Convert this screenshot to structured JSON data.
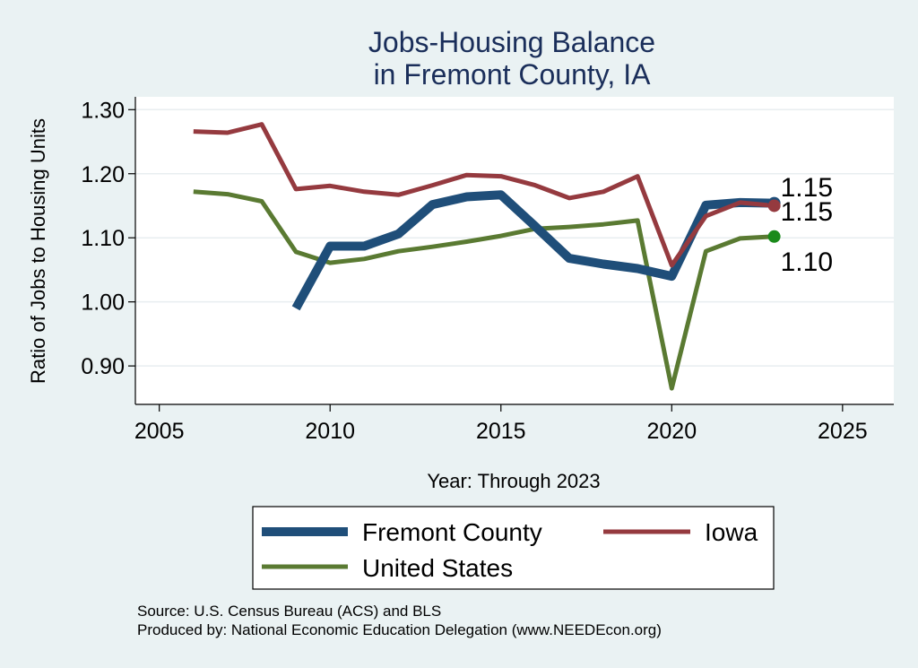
{
  "chart_data": {
    "type": "line",
    "title_line1": "Jobs-Housing Balance",
    "title_line2": "in Fremont County, IA",
    "xlabel": "Year: Through 2023",
    "ylabel": "Ratio of Jobs to Housing Units",
    "xlim": [
      2004.3,
      2026.5
    ],
    "ylim": [
      0.84,
      1.32
    ],
    "xticks": [
      2005,
      2010,
      2015,
      2020,
      2025
    ],
    "yticks": [
      0.9,
      1.0,
      1.1,
      1.2,
      1.3
    ],
    "ytick_labels": [
      "0.90",
      "1.00",
      "1.10",
      "1.20",
      "1.30"
    ],
    "grid": true,
    "legend_position": "bottom",
    "series": [
      {
        "name": "Fremont County",
        "color": "#1f4e79",
        "x": [
          2009,
          2010,
          2011,
          2012,
          2013,
          2014,
          2015,
          2016,
          2017,
          2018,
          2019,
          2020,
          2021,
          2022,
          2023
        ],
        "values": [
          0.99,
          1.087,
          1.087,
          1.106,
          1.152,
          1.164,
          1.167,
          1.118,
          1.068,
          1.059,
          1.052,
          1.04,
          1.151,
          1.155,
          1.154
        ],
        "end_label": "1.15"
      },
      {
        "name": "Iowa",
        "color": "#953a3f",
        "x": [
          2006,
          2007,
          2008,
          2009,
          2010,
          2011,
          2012,
          2013,
          2014,
          2015,
          2016,
          2017,
          2018,
          2019,
          2020,
          2021,
          2022,
          2023
        ],
        "values": [
          1.266,
          1.264,
          1.277,
          1.176,
          1.181,
          1.172,
          1.167,
          1.182,
          1.198,
          1.196,
          1.182,
          1.162,
          1.172,
          1.196,
          1.057,
          1.134,
          1.155,
          1.15
        ],
        "end_label": "1.15"
      },
      {
        "name": "United States",
        "color": "#5a7a32",
        "x": [
          2006,
          2007,
          2008,
          2009,
          2010,
          2011,
          2012,
          2013,
          2014,
          2015,
          2016,
          2017,
          2018,
          2019,
          2020,
          2021,
          2022,
          2023
        ],
        "values": [
          1.172,
          1.168,
          1.157,
          1.078,
          1.061,
          1.067,
          1.079,
          1.086,
          1.094,
          1.103,
          1.114,
          1.117,
          1.121,
          1.127,
          0.865,
          1.079,
          1.099,
          1.102
        ],
        "end_label": "1.10"
      }
    ]
  },
  "source_line1": "Source: U.S. Census Bureau (ACS) and BLS",
  "source_line2": "Produced by: National Economic Education Delegation (www.NEEDEcon.org)"
}
